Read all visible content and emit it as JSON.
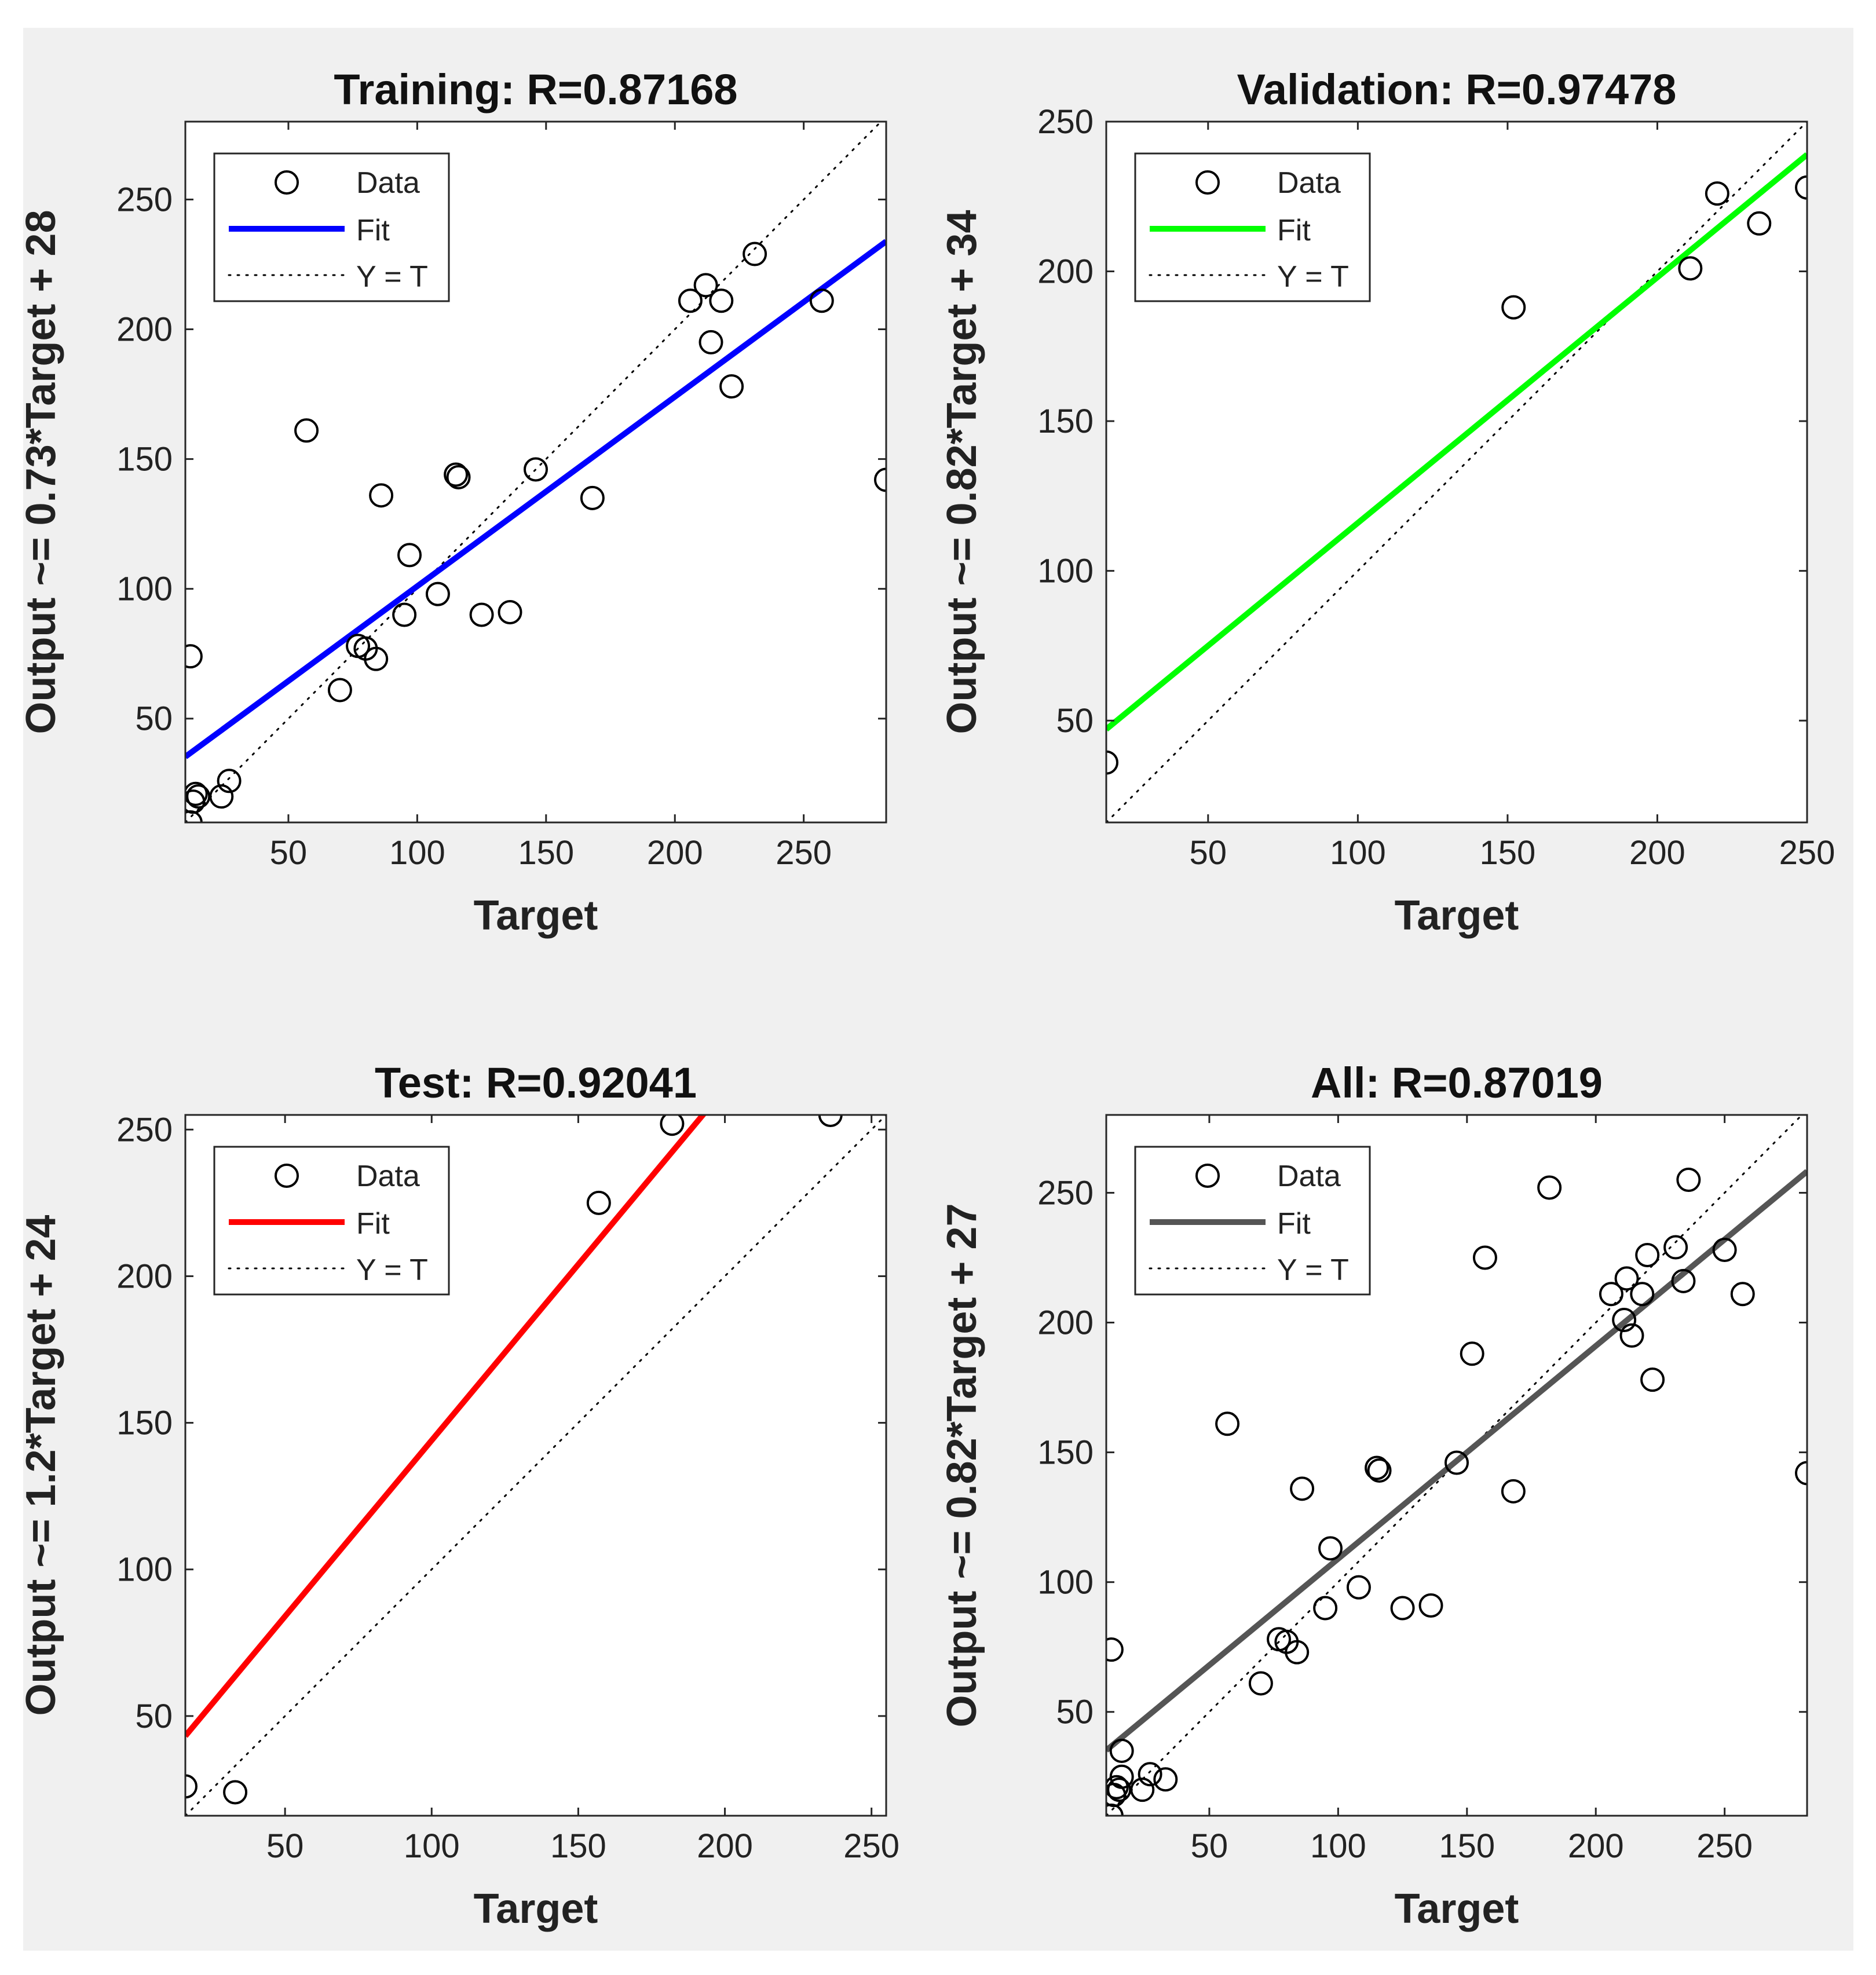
{
  "chart_data": [
    {
      "type": "scatter",
      "title": "Training: R=0.87168",
      "xlabel": "Target",
      "ylabel": "Output ~= 0.73*Target + 28",
      "xlim": [
        10,
        282
      ],
      "ylim": [
        10,
        280
      ],
      "xticks": [
        50,
        100,
        150,
        200,
        250
      ],
      "yticks": [
        50,
        100,
        150,
        200,
        250
      ],
      "fit": {
        "slope": 0.73,
        "intercept": 28,
        "color": "#0000ff"
      },
      "legend": [
        "Data",
        "Fit",
        "Y = T"
      ],
      "points": [
        [
          12,
          74
        ],
        [
          12,
          10
        ],
        [
          13,
          18
        ],
        [
          14,
          21
        ],
        [
          15,
          20
        ],
        [
          24,
          20
        ],
        [
          27,
          26
        ],
        [
          57,
          161
        ],
        [
          70,
          61
        ],
        [
          77,
          78
        ],
        [
          80,
          77
        ],
        [
          84,
          73
        ],
        [
          86,
          136
        ],
        [
          95,
          90
        ],
        [
          97,
          113
        ],
        [
          108,
          98
        ],
        [
          115,
          144
        ],
        [
          116,
          143
        ],
        [
          125,
          90
        ],
        [
          136,
          91
        ],
        [
          146,
          146
        ],
        [
          168,
          135
        ],
        [
          206,
          211
        ],
        [
          212,
          217
        ],
        [
          214,
          195
        ],
        [
          218,
          211
        ],
        [
          222,
          178
        ],
        [
          231,
          229
        ],
        [
          257,
          211
        ],
        [
          282,
          142
        ]
      ]
    },
    {
      "type": "scatter",
      "title": "Validation: R=0.97478",
      "xlabel": "Target",
      "ylabel": "Output ~= 0.82*Target + 34",
      "xlim": [
        16,
        250
      ],
      "ylim": [
        16,
        250
      ],
      "xticks": [
        50,
        100,
        150,
        200,
        250
      ],
      "yticks": [
        50,
        100,
        150,
        200,
        250
      ],
      "fit": {
        "slope": 0.82,
        "intercept": 34,
        "color": "#00ff00"
      },
      "legend": [
        "Data",
        "Fit",
        "Y = T"
      ],
      "points": [
        [
          16,
          36
        ],
        [
          152,
          188
        ],
        [
          211,
          201
        ],
        [
          220,
          226
        ],
        [
          234,
          216
        ],
        [
          250,
          228
        ]
      ]
    },
    {
      "type": "scatter",
      "title": "Test: R=0.92041",
      "xlabel": "Target",
      "ylabel": "Output ~= 1.2*Target + 24",
      "xlim": [
        16,
        255
      ],
      "ylim": [
        16,
        255
      ],
      "xticks": [
        50,
        100,
        150,
        200,
        250
      ],
      "yticks": [
        50,
        100,
        150,
        200,
        250
      ],
      "fit": {
        "slope": 1.2,
        "intercept": 24,
        "color": "#ff0000"
      },
      "legend": [
        "Data",
        "Fit",
        "Y = T"
      ],
      "points": [
        [
          16,
          26
        ],
        [
          33,
          24
        ],
        [
          157,
          225
        ],
        [
          182,
          252
        ],
        [
          236,
          255
        ]
      ]
    },
    {
      "type": "scatter",
      "title": "All: R=0.87019",
      "xlabel": "Target",
      "ylabel": "Output ~= 0.82*Target + 27",
      "xlim": [
        10,
        282
      ],
      "ylim": [
        10,
        280
      ],
      "xticks": [
        50,
        100,
        150,
        200,
        250
      ],
      "yticks": [
        50,
        100,
        150,
        200,
        250
      ],
      "fit": {
        "slope": 0.82,
        "intercept": 27,
        "color": "#555555"
      },
      "legend": [
        "Data",
        "Fit",
        "Y = T"
      ],
      "points": [
        [
          12,
          74
        ],
        [
          12,
          10
        ],
        [
          13,
          18
        ],
        [
          14,
          21
        ],
        [
          15,
          20
        ],
        [
          16,
          25
        ],
        [
          16,
          35
        ],
        [
          24,
          20
        ],
        [
          27,
          26
        ],
        [
          33,
          24
        ],
        [
          57,
          161
        ],
        [
          70,
          61
        ],
        [
          77,
          78
        ],
        [
          80,
          77
        ],
        [
          84,
          73
        ],
        [
          86,
          136
        ],
        [
          95,
          90
        ],
        [
          97,
          113
        ],
        [
          108,
          98
        ],
        [
          115,
          144
        ],
        [
          116,
          143
        ],
        [
          125,
          90
        ],
        [
          136,
          91
        ],
        [
          146,
          146
        ],
        [
          152,
          188
        ],
        [
          157,
          225
        ],
        [
          168,
          135
        ],
        [
          182,
          252
        ],
        [
          206,
          211
        ],
        [
          211,
          201
        ],
        [
          212,
          217
        ],
        [
          214,
          195
        ],
        [
          218,
          211
        ],
        [
          220,
          226
        ],
        [
          222,
          178
        ],
        [
          231,
          229
        ],
        [
          234,
          216
        ],
        [
          236,
          255
        ],
        [
          250,
          228
        ],
        [
          257,
          211
        ],
        [
          282,
          142
        ]
      ]
    }
  ]
}
